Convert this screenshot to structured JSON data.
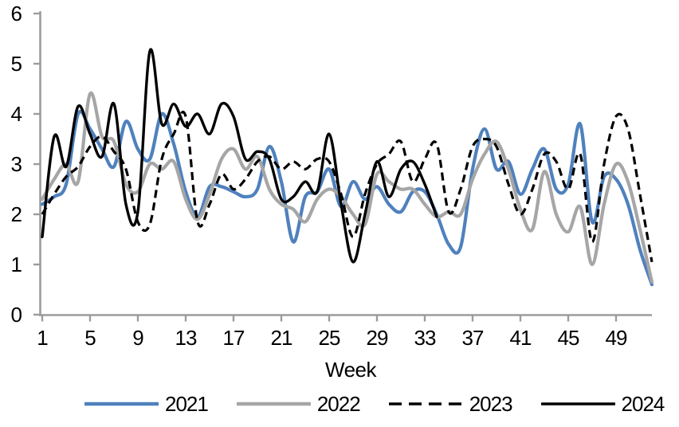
{
  "chart_data": {
    "type": "line",
    "title": "",
    "xlabel": "Week",
    "ylabel": "",
    "x_ticks": [
      1,
      5,
      9,
      13,
      17,
      21,
      25,
      29,
      33,
      37,
      41,
      45,
      49
    ],
    "y_ticks": [
      0,
      1,
      2,
      3,
      4,
      5,
      6
    ],
    "xlim": [
      1,
      52
    ],
    "ylim": [
      0,
      6
    ],
    "grid": false,
    "smoothed": true,
    "legend_position": "bottom",
    "axis_color": "#9C9C9C",
    "text_color": "#000000",
    "series": [
      {
        "name": "2021",
        "color": "#4F81BD",
        "dash": "solid",
        "width": 4.2,
        "values": [
          2.2,
          2.35,
          2.6,
          4.0,
          3.7,
          3.3,
          2.95,
          3.85,
          3.3,
          3.1,
          4.0,
          3.4,
          2.45,
          1.95,
          2.55,
          2.55,
          2.45,
          2.35,
          2.5,
          3.35,
          2.65,
          1.45,
          2.35,
          2.45,
          2.9,
          2.15,
          2.65,
          2.3,
          2.55,
          2.2,
          2.05,
          2.45,
          2.45,
          2.0,
          1.4,
          1.35,
          2.9,
          3.7,
          2.9,
          3.05,
          2.4,
          2.9,
          3.3,
          2.5,
          2.6,
          3.8,
          1.85,
          2.75,
          2.7,
          2.2,
          1.3,
          0.6
        ]
      },
      {
        "name": "2022",
        "color": "#A6A6A6",
        "dash": "solid",
        "width": 4.2,
        "values": [
          2.3,
          2.7,
          3.0,
          2.65,
          4.4,
          3.55,
          3.45,
          2.6,
          2.45,
          3.0,
          2.9,
          3.05,
          2.3,
          1.9,
          2.4,
          3.1,
          3.3,
          2.9,
          3.15,
          2.5,
          2.2,
          2.1,
          1.85,
          2.3,
          2.5,
          2.35,
          2.0,
          1.8,
          2.8,
          2.65,
          2.5,
          2.5,
          2.2,
          1.95,
          2.05,
          2.0,
          2.7,
          3.2,
          3.45,
          2.9,
          2.1,
          1.7,
          2.85,
          2.0,
          1.65,
          2.15,
          1.0,
          2.2,
          3.0,
          2.65,
          1.7,
          0.65
        ]
      },
      {
        "name": "2023",
        "color": "#000000",
        "dash": "dashed",
        "width": 3.2,
        "values": [
          2.0,
          2.4,
          2.75,
          2.95,
          3.35,
          3.55,
          3.25,
          2.9,
          1.85,
          1.8,
          3.1,
          3.6,
          3.95,
          1.85,
          2.2,
          2.8,
          2.5,
          2.7,
          3.05,
          3.15,
          2.9,
          3.05,
          2.9,
          3.1,
          3.05,
          2.4,
          1.55,
          2.4,
          3.0,
          3.2,
          3.45,
          2.65,
          3.1,
          3.4,
          2.05,
          2.5,
          3.35,
          3.5,
          3.35,
          2.6,
          2.0,
          2.5,
          3.2,
          3.05,
          2.5,
          3.2,
          1.45,
          3.0,
          3.95,
          3.7,
          2.4,
          1.05
        ]
      },
      {
        "name": "2024",
        "color": "#000000",
        "dash": "solid",
        "width": 3.4,
        "values": [
          1.55,
          3.55,
          2.95,
          4.15,
          3.6,
          3.15,
          4.2,
          2.2,
          2.05,
          5.25,
          3.8,
          4.2,
          3.75,
          4.0,
          3.6,
          4.2,
          3.95,
          3.1,
          3.25,
          3.1,
          2.3,
          2.35,
          2.65,
          2.45,
          3.6,
          2.2,
          1.05,
          2.0,
          3.05,
          2.35,
          2.9,
          3.05,
          2.6,
          1.95
        ]
      }
    ]
  }
}
